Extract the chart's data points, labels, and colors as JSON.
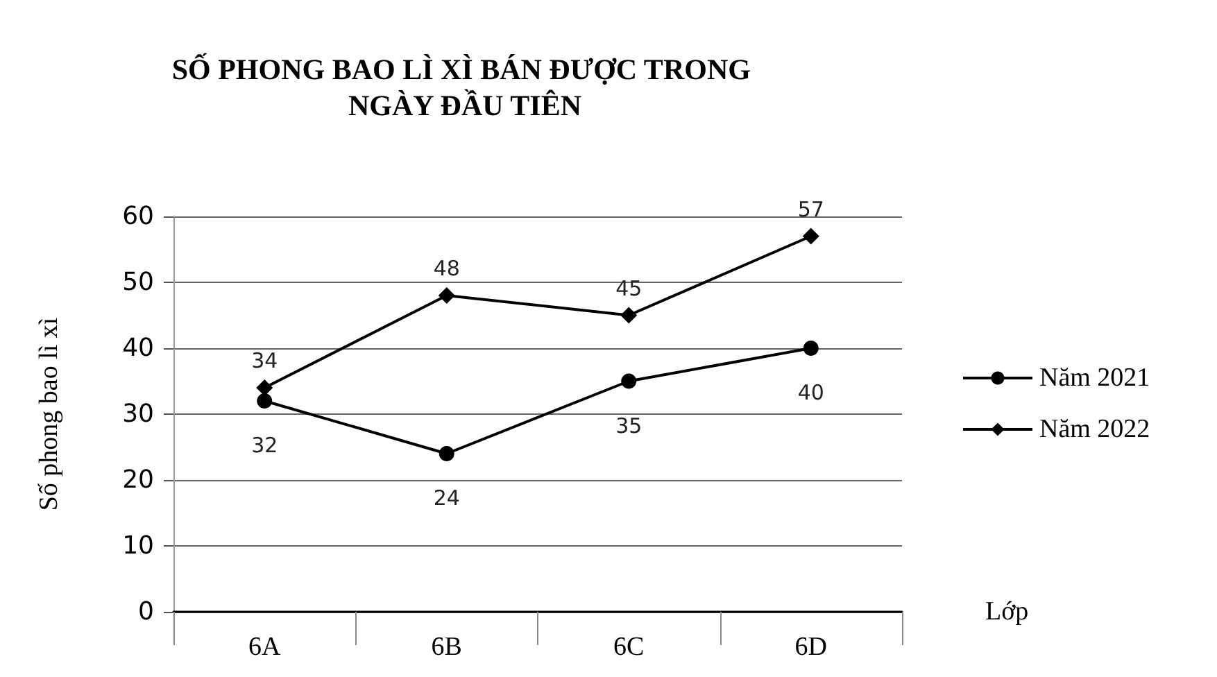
{
  "chart_data": {
    "type": "line",
    "title": "SỐ PHONG BAO LÌ XÌ BÁN ĐƯỢC TRONG NGÀY ĐẦU TIÊN",
    "xlabel": "Lớp",
    "ylabel": "Số phong bao lì xì",
    "categories": [
      "6A",
      "6B",
      "6C",
      "6D"
    ],
    "series": [
      {
        "name": "Năm 2021",
        "color": "#000000",
        "marker": "circle",
        "values": [
          32,
          24,
          35,
          40
        ]
      },
      {
        "name": "Năm 2022",
        "color": "#000000",
        "marker": "diamond",
        "values": [
          34,
          48,
          45,
          57
        ]
      }
    ],
    "ylim": [
      0,
      60
    ],
    "yticks": [
      0,
      10,
      20,
      30,
      40,
      50,
      60
    ],
    "grid": "y",
    "legend": "right",
    "data_labels": true
  }
}
